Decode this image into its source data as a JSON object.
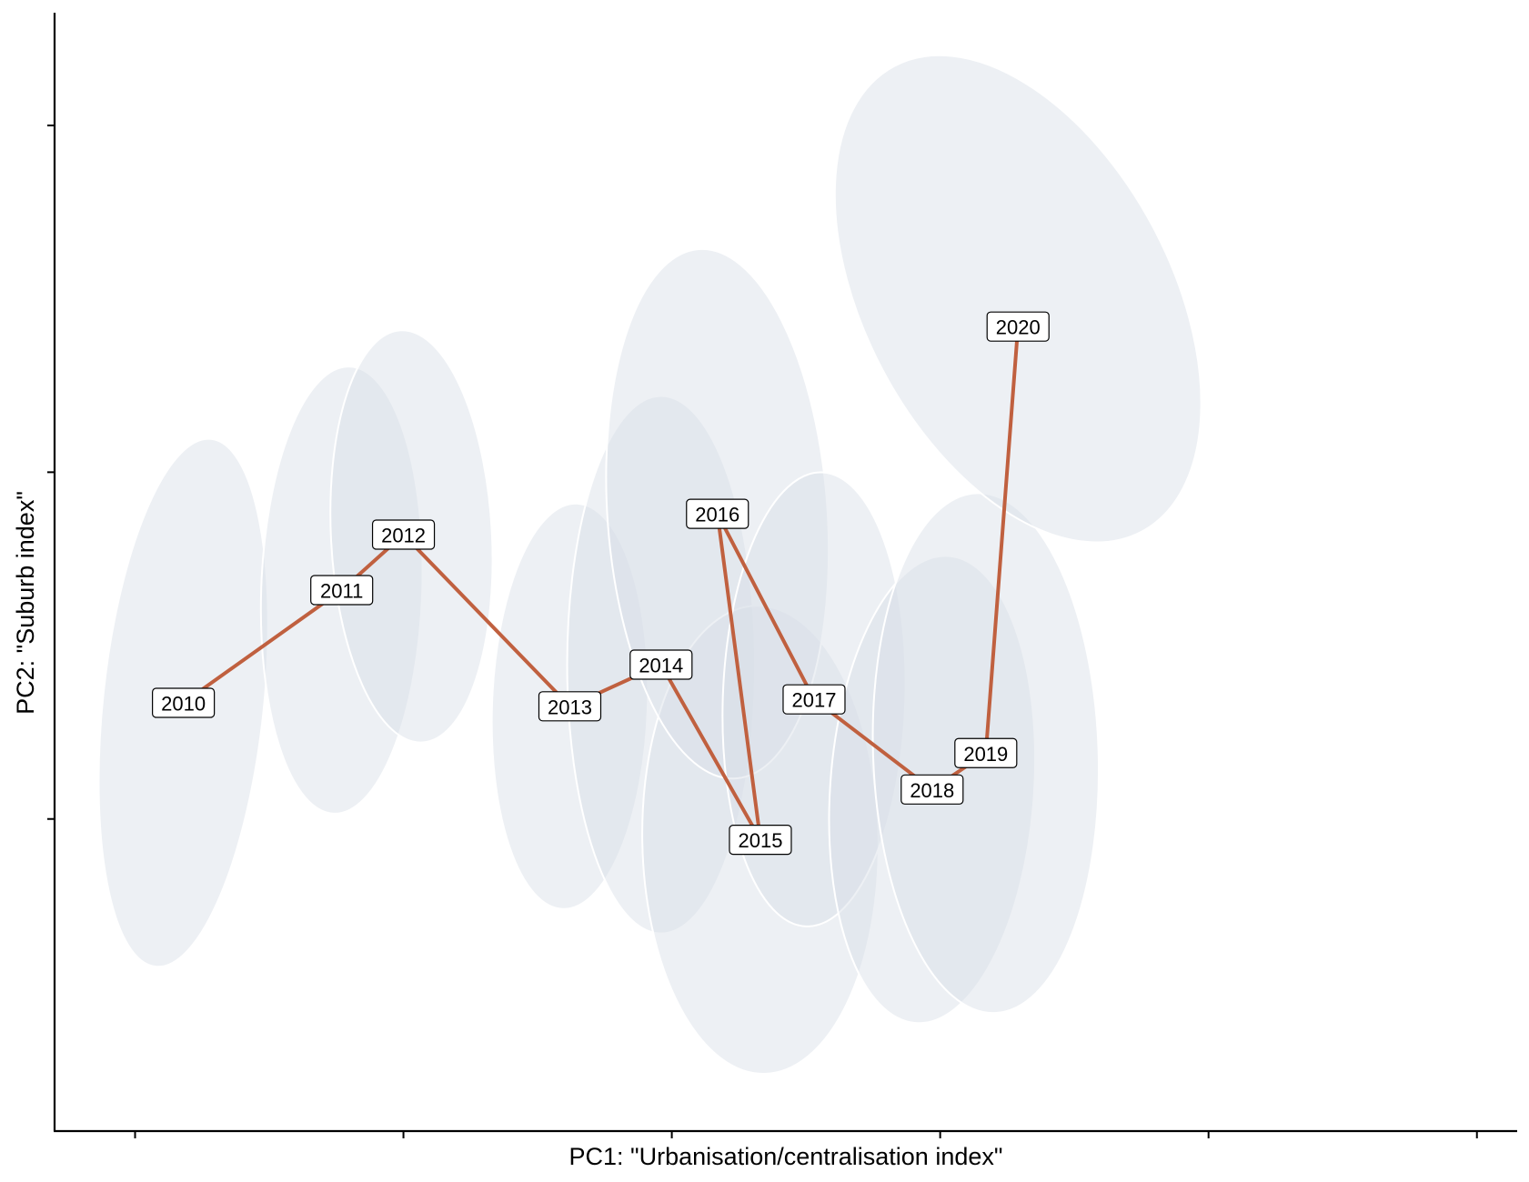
{
  "chart_data": {
    "type": "line",
    "xlabel": "PC1: \"Urbanisation/centralisation index\"",
    "ylabel": "PC2: \"Suburb index\"",
    "xlim": [
      -1.3,
      4.15
    ],
    "ylim": [
      -2.8,
      3.65
    ],
    "x_ticks": [
      -1,
      0,
      1,
      2,
      3,
      4
    ],
    "y_ticks": [
      -1,
      1,
      3
    ],
    "tick_labels_shown": false,
    "grid": false,
    "series": [
      {
        "points": [
          {
            "label": "2010",
            "x": -0.82,
            "y": -0.33
          },
          {
            "label": "2011",
            "x": -0.23,
            "y": 0.32
          },
          {
            "label": "2012",
            "x": 0.0,
            "y": 0.64
          },
          {
            "label": "2013",
            "x": 0.62,
            "y": -0.35
          },
          {
            "label": "2014",
            "x": 0.96,
            "y": -0.11
          },
          {
            "label": "2015",
            "x": 1.33,
            "y": -1.12
          },
          {
            "label": "2016",
            "x": 1.17,
            "y": 0.76
          },
          {
            "label": "2017",
            "x": 1.53,
            "y": -0.31
          },
          {
            "label": "2018",
            "x": 1.97,
            "y": -0.83
          },
          {
            "label": "2019",
            "x": 2.17,
            "y": -0.62
          },
          {
            "label": "2020",
            "x": 2.29,
            "y": 1.84
          }
        ]
      }
    ],
    "ellipses": [
      {
        "year": "2010",
        "cx": -0.82,
        "cy": -0.33,
        "rx": 0.3,
        "ry": 1.53,
        "angle": 6
      },
      {
        "year": "2011",
        "cx": -0.23,
        "cy": 0.32,
        "rx": 0.3,
        "ry": 1.29,
        "angle": 2
      },
      {
        "year": "2012",
        "cx": 0.03,
        "cy": 0.63,
        "rx": 0.3,
        "ry": 1.19,
        "angle": -3
      },
      {
        "year": "2013",
        "cx": 0.62,
        "cy": -0.35,
        "rx": 0.29,
        "ry": 1.17,
        "angle": 2
      },
      {
        "year": "2014",
        "cx": 0.96,
        "cy": -0.11,
        "rx": 0.35,
        "ry": 1.55,
        "angle": 0
      },
      {
        "year": "2015",
        "cx": 1.33,
        "cy": -1.12,
        "rx": 0.44,
        "ry": 1.35,
        "angle": -1
      },
      {
        "year": "2016",
        "cx": 1.17,
        "cy": 0.76,
        "rx": 0.41,
        "ry": 1.53,
        "angle": -4
      },
      {
        "year": "2017",
        "cx": 1.53,
        "cy": -0.31,
        "rx": 0.34,
        "ry": 1.31,
        "angle": 2
      },
      {
        "year": "2018",
        "cx": 1.97,
        "cy": -0.83,
        "rx": 0.38,
        "ry": 1.35,
        "angle": 4
      },
      {
        "year": "2019",
        "cx": 2.17,
        "cy": -0.62,
        "rx": 0.42,
        "ry": 1.5,
        "angle": -2
      },
      {
        "year": "2020",
        "cx": 2.29,
        "cy": 2.0,
        "rx": 0.57,
        "ry": 1.52,
        "angle": -28
      }
    ],
    "colors": {
      "line": "#c0603f",
      "ellipse_fill": "#d7dee6",
      "ellipse_stroke": "#ffffff",
      "label_background": "#ffffff"
    }
  }
}
